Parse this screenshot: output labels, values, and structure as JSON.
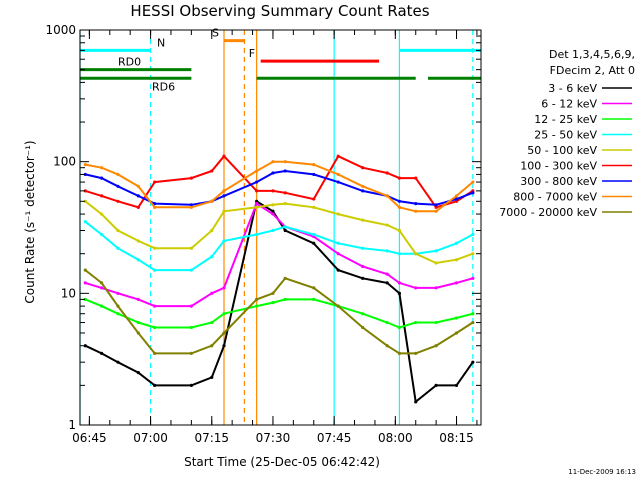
{
  "chart_data": {
    "type": "line",
    "title": "HESSI Observing Summary Count Rates",
    "xlabel": "Start Time (25-Dec-05 06:42:42)",
    "ylabel": "Count Rate (s⁻¹ detector⁻¹)",
    "yscale": "log",
    "ylim": [
      1,
      1000
    ],
    "xlim": [
      "06:42:42",
      "08:21:00"
    ],
    "x_ticks": [
      "06:45",
      "07:00",
      "07:15",
      "07:30",
      "07:45",
      "08:00",
      "08:15"
    ],
    "y_ticks": [
      "1",
      "10",
      "100",
      "1000"
    ],
    "legend_position": "right",
    "legend_header": [
      "Det 1,3,4,5,6,9,",
      "FDecim 2, Att 0"
    ],
    "grid": false,
    "series": [
      {
        "name": "3 - 6 keV",
        "color": "#000000",
        "x": [
          "06:44",
          "06:48",
          "06:52",
          "06:57",
          "07:01",
          "07:10",
          "07:15",
          "07:18",
          "07:26",
          "07:30",
          "07:33",
          "07:40",
          "07:46",
          "07:52",
          "07:58",
          "08:01",
          "08:05",
          "08:10",
          "08:15",
          "08:19"
        ],
        "values": [
          4,
          3.5,
          3,
          2.5,
          2,
          2,
          2.3,
          4,
          50,
          42,
          30,
          24,
          15,
          13,
          12,
          10,
          1.5,
          2,
          2,
          3
        ]
      },
      {
        "name": "6 - 12 keV",
        "color": "#ff00ff",
        "x": [
          "06:44",
          "06:48",
          "06:52",
          "06:57",
          "07:01",
          "07:10",
          "07:15",
          "07:18",
          "07:26",
          "07:30",
          "07:33",
          "07:40",
          "07:46",
          "07:52",
          "07:58",
          "08:01",
          "08:05",
          "08:10",
          "08:15",
          "08:19"
        ],
        "values": [
          12,
          11,
          10,
          9,
          8,
          8,
          10,
          11,
          48,
          40,
          32,
          27,
          20,
          16,
          14,
          12,
          11,
          11,
          12,
          13
        ]
      },
      {
        "name": "12 - 25 keV",
        "color": "#00ff00",
        "x": [
          "06:44",
          "06:48",
          "06:52",
          "06:57",
          "07:01",
          "07:10",
          "07:15",
          "07:18",
          "07:26",
          "07:30",
          "07:33",
          "07:40",
          "07:46",
          "07:52",
          "07:58",
          "08:01",
          "08:05",
          "08:10",
          "08:15",
          "08:19"
        ],
        "values": [
          9,
          8,
          7,
          6,
          5.5,
          5.5,
          6,
          7,
          8,
          8.5,
          9,
          9,
          8,
          7,
          6,
          5.5,
          6,
          6,
          6.5,
          7
        ]
      },
      {
        "name": "25 - 50 keV",
        "color": "#00ffff",
        "x": [
          "06:44",
          "06:48",
          "06:52",
          "06:57",
          "07:01",
          "07:10",
          "07:15",
          "07:18",
          "07:26",
          "07:30",
          "07:33",
          "07:40",
          "07:46",
          "07:52",
          "07:58",
          "08:01",
          "08:05",
          "08:10",
          "08:15",
          "08:19"
        ],
        "values": [
          35,
          28,
          22,
          18,
          15,
          15,
          19,
          25,
          28,
          30,
          32,
          28,
          24,
          22,
          21,
          20,
          20,
          21,
          24,
          28
        ]
      },
      {
        "name": "50 - 100 keV",
        "color": "#cccc00",
        "x": [
          "06:44",
          "06:48",
          "06:52",
          "06:57",
          "07:01",
          "07:10",
          "07:15",
          "07:18",
          "07:26",
          "07:30",
          "07:33",
          "07:40",
          "07:46",
          "07:52",
          "07:58",
          "08:01",
          "08:05",
          "08:10",
          "08:15",
          "08:19"
        ],
        "values": [
          50,
          40,
          30,
          25,
          22,
          22,
          30,
          42,
          45,
          47,
          48,
          45,
          40,
          36,
          33,
          30,
          20,
          17,
          18,
          20
        ]
      },
      {
        "name": "100 - 300 keV",
        "color": "#ff0000",
        "x": [
          "06:44",
          "06:48",
          "06:52",
          "06:57",
          "07:01",
          "07:10",
          "07:15",
          "07:18",
          "07:26",
          "07:30",
          "07:33",
          "07:40",
          "07:46",
          "07:52",
          "07:58",
          "08:01",
          "08:05",
          "08:10",
          "08:15",
          "08:19"
        ],
        "values": [
          60,
          55,
          50,
          45,
          70,
          75,
          85,
          110,
          60,
          60,
          58,
          52,
          110,
          90,
          82,
          75,
          75,
          45,
          50,
          60
        ]
      },
      {
        "name": "300 - 800 keV",
        "color": "#0000ff",
        "x": [
          "06:44",
          "06:48",
          "06:52",
          "06:57",
          "07:01",
          "07:10",
          "07:15",
          "07:18",
          "07:26",
          "07:30",
          "07:33",
          "07:40",
          "07:46",
          "07:52",
          "07:58",
          "08:01",
          "08:05",
          "08:10",
          "08:15",
          "08:19"
        ],
        "values": [
          80,
          75,
          65,
          55,
          48,
          47,
          50,
          55,
          70,
          82,
          85,
          80,
          70,
          60,
          55,
          50,
          48,
          47,
          52,
          58
        ]
      },
      {
        "name": "800 - 7000 keV",
        "color": "#ff8800",
        "x": [
          "06:44",
          "06:48",
          "06:52",
          "06:57",
          "07:01",
          "07:10",
          "07:15",
          "07:18",
          "07:26",
          "07:30",
          "07:33",
          "07:40",
          "07:46",
          "07:52",
          "07:58",
          "08:01",
          "08:05",
          "08:10",
          "08:15",
          "08:19"
        ],
        "values": [
          95,
          90,
          80,
          65,
          45,
          45,
          50,
          60,
          85,
          100,
          100,
          95,
          80,
          65,
          55,
          45,
          42,
          42,
          55,
          70
        ]
      },
      {
        "name": "7000 - 20000 keV",
        "color": "#808000",
        "x": [
          "06:44",
          "06:48",
          "06:52",
          "06:57",
          "07:01",
          "07:10",
          "07:15",
          "07:18",
          "07:26",
          "07:30",
          "07:33",
          "07:40",
          "07:46",
          "07:52",
          "07:58",
          "08:01",
          "08:05",
          "08:10",
          "08:15",
          "08:19"
        ],
        "values": [
          15,
          12,
          8,
          5,
          3.5,
          3.5,
          4,
          5,
          9,
          10,
          13,
          11,
          8,
          5.5,
          4,
          3.5,
          3.5,
          4,
          5,
          6
        ]
      }
    ],
    "flag_bars": [
      {
        "label": "N",
        "color": "#00ffff",
        "y": 700,
        "spans": [
          [
            "06:42:42",
            "07:00"
          ],
          [
            "08:01",
            "08:21"
          ]
        ]
      },
      {
        "label": "S",
        "color": "#ff8800",
        "y": 830,
        "spans": [
          [
            "07:18",
            "07:23"
          ]
        ]
      },
      {
        "label": "F",
        "color": "#ff0000",
        "y": 580,
        "spans": [
          [
            "07:27",
            "07:56"
          ]
        ]
      },
      {
        "label": "RD0",
        "color": "#008000",
        "y": 500,
        "spans": [
          [
            "06:42:42",
            "07:10"
          ]
        ]
      },
      {
        "label": "RD6",
        "color": "#008000",
        "y": 430,
        "spans": [
          [
            "06:42:42",
            "07:10"
          ],
          [
            "07:26",
            "07:45"
          ],
          [
            "07:45",
            "08:05"
          ],
          [
            "08:08",
            "08:21"
          ]
        ]
      }
    ],
    "markers": [
      {
        "color": "#00ffff",
        "style": "solid",
        "x": [
          "06:42:42",
          "07:45",
          "08:01"
        ]
      },
      {
        "color": "#00ffff",
        "style": "dashed",
        "x": [
          "07:00",
          "08:19"
        ]
      },
      {
        "color": "#ff8800",
        "style": "solid",
        "x": [
          "07:18",
          "07:26"
        ]
      },
      {
        "color": "#ff8800",
        "style": "dashed",
        "x": [
          "07:23"
        ]
      }
    ]
  },
  "footer": {
    "timestamp": "11-Dec-2009 16:13"
  }
}
